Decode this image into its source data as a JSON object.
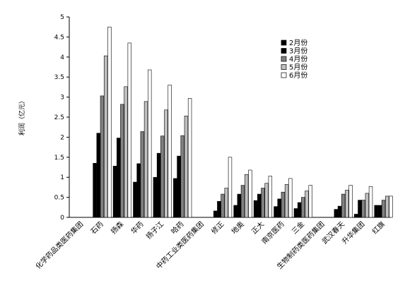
{
  "chart_data": {
    "type": "bar",
    "ylabel": "利润（亿元）",
    "ylim": [
      0,
      5
    ],
    "yticks": [
      "0",
      "0.5",
      "1",
      "1.5",
      "2",
      "2.5",
      "3",
      "3.5",
      "4",
      "4.5",
      "5"
    ],
    "legend_position": "top-right",
    "grid": false,
    "categories": [
      "化学药品类医药集团",
      "石药",
      "扬森",
      "华药",
      "扬子江",
      "哈药",
      "中药工业类医药集团",
      "修正",
      "地奥",
      "正大",
      "南京医药",
      "三金",
      "生物制药类医药集团",
      "武汉春天",
      "升华集团",
      "红旗"
    ],
    "series": [
      {
        "name": "2月份",
        "color": "#000000",
        "values": [
          null,
          1.35,
          1.28,
          0.88,
          1.0,
          0.97,
          null,
          0.16,
          0.3,
          0.42,
          0.27,
          0.22,
          null,
          0.2,
          0.08,
          0.3
        ]
      },
      {
        "name": "3月份",
        "color": "#000000",
        "values": [
          null,
          2.1,
          1.98,
          1.34,
          1.6,
          1.53,
          null,
          0.4,
          0.58,
          0.58,
          0.46,
          0.37,
          null,
          0.28,
          0.43,
          0.3
        ]
      },
      {
        "name": "4月份",
        "color": "#808080",
        "values": [
          null,
          3.03,
          2.82,
          2.14,
          2.03,
          2.04,
          null,
          0.58,
          0.8,
          0.73,
          0.63,
          0.5,
          null,
          0.58,
          0.43,
          0.43
        ]
      },
      {
        "name": "5月份",
        "color": "#c0c0c0",
        "values": [
          null,
          4.03,
          3.26,
          2.89,
          2.68,
          2.53,
          null,
          0.73,
          1.07,
          0.85,
          0.82,
          0.66,
          null,
          0.68,
          0.6,
          0.53
        ]
      },
      {
        "name": "6月份",
        "color": "#ffffff",
        "values": [
          null,
          4.75,
          4.35,
          3.68,
          3.3,
          2.97,
          null,
          1.5,
          1.18,
          1.03,
          0.97,
          0.8,
          null,
          0.8,
          0.77,
          0.53
        ]
      }
    ]
  }
}
